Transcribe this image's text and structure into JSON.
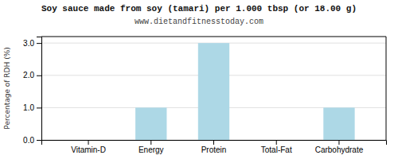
{
  "chart_data": {
    "type": "bar",
    "title": "Soy sauce made from soy (tamari) per 1.000 tbsp (or 18.00 g)",
    "subtitle": "www.dietandfitnesstoday.com",
    "ylabel": "Percentage of RDH (%)",
    "categories": [
      "Vitamin-D",
      "Energy",
      "Protein",
      "Total-Fat",
      "Carbohydrate"
    ],
    "values": [
      0.0,
      1.0,
      3.0,
      0.0,
      1.0
    ],
    "color": "#add8e6",
    "ylim": [
      0,
      3.2
    ],
    "yticks": [
      {
        "value": 0.0,
        "label": "0.0"
      },
      {
        "value": 1.0,
        "label": "1.0"
      },
      {
        "value": 2.0,
        "label": "2.0"
      },
      {
        "value": 3.0,
        "label": "3.0"
      }
    ],
    "grid": true
  }
}
